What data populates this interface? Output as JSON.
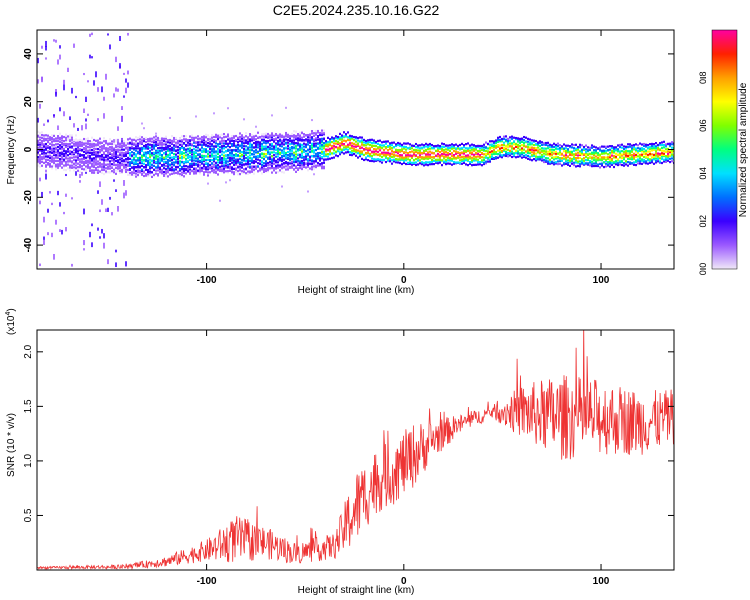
{
  "title": "C2E5.2024.235.10.16.G22",
  "chart_data": [
    {
      "type": "heatmap",
      "xlabel": "Height of straight line (km)",
      "ylabel": "Frequency (Hz)",
      "xlim": [
        -186,
        137
      ],
      "ylim": [
        -50,
        50
      ],
      "xticks": [
        -100,
        0,
        100
      ],
      "yticks": [
        -40,
        -20,
        0,
        20,
        40
      ],
      "colorbar": {
        "label": "Normalized spectral amplitude",
        "range": [
          0,
          1
        ],
        "ticks": [
          "0.0",
          "0.2",
          "0.4",
          "0.6",
          "0.8"
        ],
        "colors": [
          "#f0e8f8",
          "#9b59ff",
          "#3a00ff",
          "#0070ff",
          "#00e0ff",
          "#00ff80",
          "#80ff00",
          "#ffff00",
          "#ffa000",
          "#ff2000",
          "#ff00a0"
        ]
      },
      "ridge": [
        {
          "x": -186,
          "y": 0
        },
        {
          "x": -150,
          "y": -3
        },
        {
          "x": -120,
          "y": -3
        },
        {
          "x": -90,
          "y": -2
        },
        {
          "x": -60,
          "y": -1
        },
        {
          "x": -40,
          "y": 0
        },
        {
          "x": -30,
          "y": 3
        },
        {
          "x": -20,
          "y": 0
        },
        {
          "x": -10,
          "y": -1
        },
        {
          "x": 0,
          "y": -2
        },
        {
          "x": 20,
          "y": -2
        },
        {
          "x": 40,
          "y": -2
        },
        {
          "x": 48,
          "y": 1
        },
        {
          "x": 60,
          "y": 1
        },
        {
          "x": 75,
          "y": -2
        },
        {
          "x": 100,
          "y": -3
        },
        {
          "x": 120,
          "y": -2
        },
        {
          "x": 137,
          "y": -1
        }
      ]
    },
    {
      "type": "line",
      "xlabel": "Height of straight line (km)",
      "ylabel": "SNR (10 * v/v)",
      "scale_label": "(x10",
      "scale_exponent": "4",
      "xlim": [
        -186,
        137
      ],
      "ylim": [
        0,
        2.2
      ],
      "xticks": [
        -100,
        0,
        100
      ],
      "yticks": [
        "0.5",
        "1.0",
        "1.5",
        "2.0"
      ],
      "color": "#ee3333",
      "envelope": [
        {
          "x": -186,
          "mean": 0.02,
          "spread": 0.01
        },
        {
          "x": -140,
          "mean": 0.03,
          "spread": 0.02
        },
        {
          "x": -120,
          "mean": 0.08,
          "spread": 0.05
        },
        {
          "x": -100,
          "mean": 0.18,
          "spread": 0.1
        },
        {
          "x": -85,
          "mean": 0.28,
          "spread": 0.22
        },
        {
          "x": -70,
          "mean": 0.25,
          "spread": 0.15
        },
        {
          "x": -55,
          "mean": 0.15,
          "spread": 0.1
        },
        {
          "x": -35,
          "mean": 0.22,
          "spread": 0.12
        },
        {
          "x": -25,
          "mean": 0.55,
          "spread": 0.35
        },
        {
          "x": -15,
          "mean": 0.8,
          "spread": 0.3
        },
        {
          "x": -5,
          "mean": 0.9,
          "spread": 0.3
        },
        {
          "x": 5,
          "mean": 1.05,
          "spread": 0.3
        },
        {
          "x": 15,
          "mean": 1.2,
          "spread": 0.18
        },
        {
          "x": 30,
          "mean": 1.35,
          "spread": 0.08
        },
        {
          "x": 45,
          "mean": 1.45,
          "spread": 0.06
        },
        {
          "x": 60,
          "mean": 1.45,
          "spread": 0.25
        },
        {
          "x": 80,
          "mean": 1.4,
          "spread": 0.4
        },
        {
          "x": 100,
          "mean": 1.4,
          "spread": 0.35
        },
        {
          "x": 120,
          "mean": 1.35,
          "spread": 0.3
        },
        {
          "x": 137,
          "mean": 1.4,
          "spread": 0.25
        }
      ]
    }
  ]
}
